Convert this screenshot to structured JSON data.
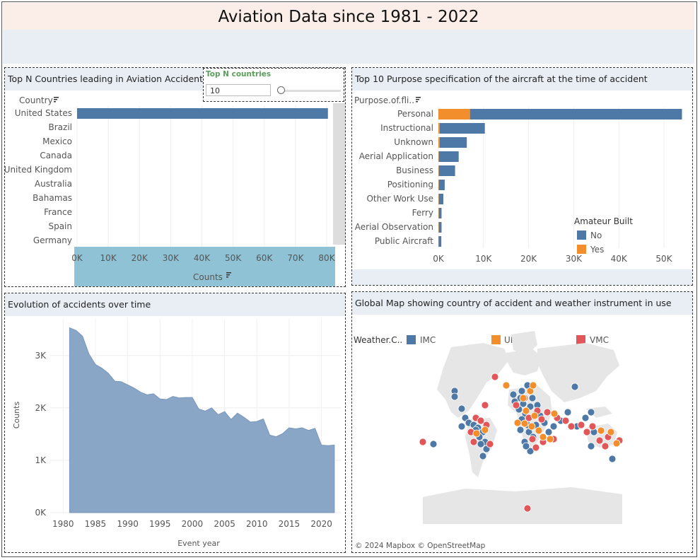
{
  "dashboard": {
    "title": "Aviation Data since 1981 - 2022"
  },
  "countries_panel": {
    "title": "Top N Countries leading in Aviation Accidents",
    "dim_label": "Country",
    "axis_label": "Counts",
    "ticks": [
      "0K",
      "10K",
      "20K",
      "30K",
      "40K",
      "50K",
      "60K",
      "70K",
      "80K"
    ]
  },
  "topn_param": {
    "title": "Top N countries",
    "value": "10"
  },
  "purpose_panel": {
    "title": "Top 10 Purpose specification of the aircraft at the time of accident",
    "dim_label": "Purpose.of.fli..",
    "ticks": [
      "0K",
      "10K",
      "20K",
      "30K",
      "40K",
      "50K"
    ],
    "legend_title": "Amateur Built",
    "legend": [
      "No",
      "Yes"
    ]
  },
  "evolution_panel": {
    "title": "Evolution of accidents over time",
    "ylabel": "Counts",
    "xlabel": "Event year",
    "yticks": [
      "0K",
      "1K",
      "2K",
      "3K"
    ],
    "xticks": [
      "1980",
      "1985",
      "1990",
      "1995",
      "2000",
      "2005",
      "2010",
      "2015",
      "2020"
    ]
  },
  "map_panel": {
    "title": "Global Map showing country of accident and weather instrument in use",
    "legend_title": "Weather.C..",
    "legend": [
      "IMC",
      "UNK",
      "VMC"
    ],
    "attribution": "© 2024 Mapbox  © OpenStreetMap"
  },
  "colors": {
    "no": "#4e79a7",
    "yes": "#f28e2b",
    "imc": "#4e79a7",
    "unk": "#f28e2b",
    "vmc": "#e15759",
    "area": "#8aa6c7"
  },
  "chart_data": [
    {
      "type": "bar",
      "title": "Top N Countries leading in Aviation Accidents",
      "xlabel": "Counts",
      "ylabel": "Country",
      "categories": [
        "United States",
        "Brazil",
        "Mexico",
        "Canada",
        "United Kingdom",
        "Australia",
        "Bahamas",
        "France",
        "Spain",
        "Germany"
      ],
      "values": [
        80500,
        0,
        0,
        0,
        0,
        0,
        0,
        0,
        0,
        0
      ],
      "xlim": [
        0,
        80000
      ]
    },
    {
      "type": "bar",
      "title": "Top 10 Purpose specification of the aircraft at the time of accident",
      "xlabel": "",
      "ylabel": "Purpose.of.fli..",
      "categories": [
        "Personal",
        "Instructional",
        "Unknown",
        "Aerial Application",
        "Business",
        "Positioning",
        "Other Work Use",
        "Ferry",
        "Aerial Observation",
        "Public Aircraft"
      ],
      "series": [
        {
          "name": "No",
          "values": [
            47000,
            10000,
            6000,
            4400,
            3600,
            1300,
            1000,
            600,
            600,
            600
          ]
        },
        {
          "name": "Yes",
          "values": [
            7000,
            300,
            300,
            100,
            100,
            100,
            100,
            100,
            100,
            50
          ]
        }
      ],
      "xlim": [
        0,
        55000
      ]
    },
    {
      "type": "area",
      "title": "Evolution of accidents over time",
      "xlabel": "Event year",
      "ylabel": "Counts",
      "x": [
        1981,
        1982,
        1983,
        1984,
        1985,
        1986,
        1987,
        1988,
        1989,
        1990,
        1991,
        1992,
        1993,
        1994,
        1995,
        1996,
        1997,
        1998,
        1999,
        2000,
        2001,
        2002,
        2003,
        2004,
        2005,
        2006,
        2007,
        2008,
        2009,
        2010,
        2011,
        2012,
        2013,
        2014,
        2015,
        2016,
        2017,
        2018,
        2019,
        2020,
        2021,
        2022
      ],
      "values": [
        3530,
        3480,
        3370,
        3030,
        2830,
        2760,
        2660,
        2510,
        2500,
        2440,
        2380,
        2300,
        2250,
        2270,
        2170,
        2160,
        2220,
        2190,
        2200,
        2200,
        1980,
        1940,
        2000,
        1870,
        1930,
        1780,
        1900,
        1820,
        1730,
        1740,
        1790,
        1480,
        1450,
        1510,
        1620,
        1600,
        1620,
        1570,
        1610,
        1290,
        1280,
        1290
      ],
      "ylim": [
        0,
        3700
      ],
      "xlim": [
        1978,
        2023
      ]
    }
  ]
}
